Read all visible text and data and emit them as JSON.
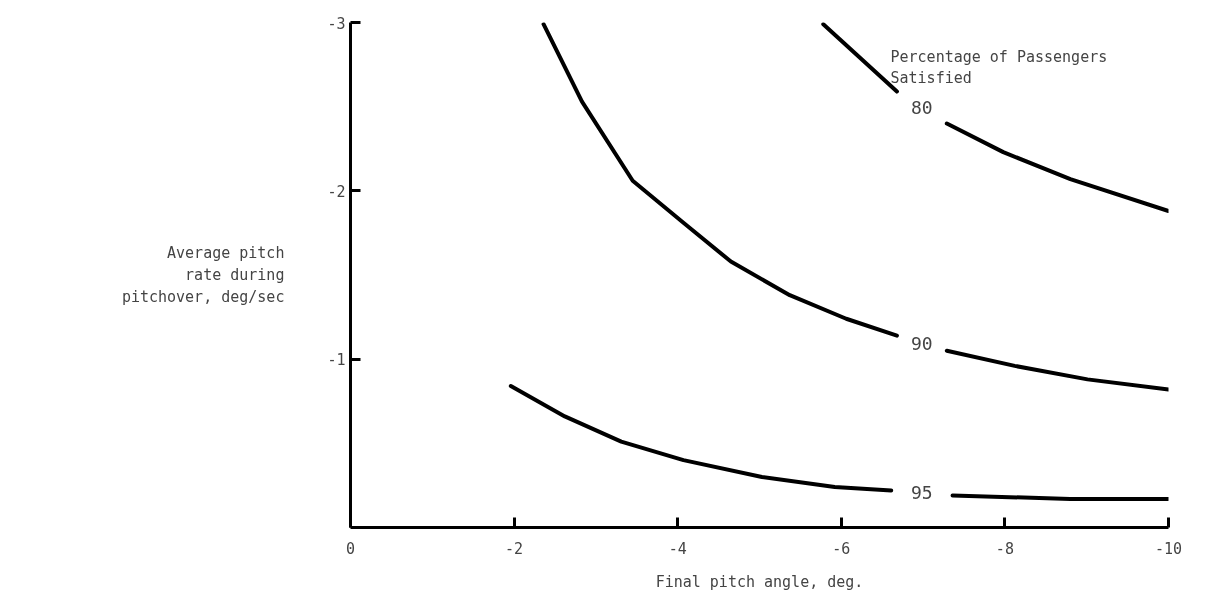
{
  "chart_data": {
    "type": "line",
    "xlabel": "Final pitch angle, deg.",
    "ylabel": "Average pitch\nrate during\npitchover, deg/sec",
    "xlim": [
      0,
      -10
    ],
    "ylim": [
      0,
      -3
    ],
    "xticks": [
      0,
      -2,
      -4,
      -6,
      -8,
      -10
    ],
    "yticks": [
      -1,
      -2,
      -3
    ],
    "grid": false,
    "legend": false,
    "marker": "none",
    "line_style": "solid",
    "series": [
      {
        "name": "80",
        "color": "#000000",
        "x": [
          -5.78,
          -6.68,
          null,
          -7.29,
          -7.98,
          -8.8,
          -10
        ],
        "values": [
          -2.99,
          -2.59,
          null,
          -2.4,
          -2.23,
          -2.07,
          -1.88
        ]
      },
      {
        "name": "90",
        "color": "#000000",
        "x": [
          -2.36,
          -2.83,
          -3.45,
          -4.07,
          -4.65,
          -5.37,
          -6.06,
          -6.68,
          null,
          -7.29,
          -8.12,
          -9.01,
          -10
        ],
        "values": [
          -2.99,
          -2.53,
          -2.06,
          -1.81,
          -1.58,
          -1.38,
          -1.24,
          -1.14,
          null,
          -1.05,
          -0.96,
          -0.88,
          -0.82
        ]
      },
      {
        "name": "95",
        "color": "#000000",
        "x": [
          -1.96,
          -2.62,
          -3.31,
          -4.07,
          -5.03,
          -5.92,
          -6.61,
          null,
          -7.36,
          -8.8,
          -10
        ],
        "values": [
          -0.84,
          -0.66,
          -0.51,
          -0.4,
          -0.3,
          -0.24,
          -0.22,
          null,
          -0.19,
          -0.17,
          -0.17
        ]
      }
    ],
    "annotations": [
      "Percentage of Passengers\n Satisfied"
    ]
  }
}
